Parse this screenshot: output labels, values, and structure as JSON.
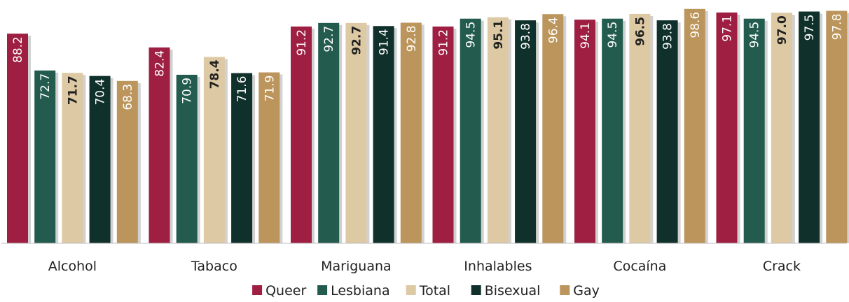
{
  "chart_data": {
    "type": "bar",
    "categories": [
      "Alcohol",
      "Tabaco",
      "Mariguana",
      "Inhalables",
      "Cocaína",
      "Crack"
    ],
    "series": [
      {
        "name": "Queer",
        "color": "#9e1f42",
        "label_color": "#ffffff",
        "label_bold": false,
        "values": [
          88.2,
          82.4,
          91.2,
          91.2,
          94.1,
          97.1
        ]
      },
      {
        "name": "Lesbiana",
        "color": "#235b4e",
        "label_color": "#ffffff",
        "label_bold": false,
        "values": [
          72.7,
          70.9,
          92.7,
          94.5,
          94.5,
          94.5
        ]
      },
      {
        "name": "Total",
        "color": "#ddc9a3",
        "label_color": "#222222",
        "label_bold": true,
        "values": [
          71.7,
          78.4,
          92.7,
          95.1,
          96.5,
          97.0
        ]
      },
      {
        "name": "Bisexual",
        "color": "#10312b",
        "label_color": "#ffffff",
        "label_bold": false,
        "values": [
          70.4,
          71.6,
          91.4,
          93.8,
          93.8,
          97.5
        ]
      },
      {
        "name": "Gay",
        "color": "#bc955c",
        "label_color": "#ffffff",
        "label_bold": false,
        "values": [
          68.3,
          71.9,
          92.8,
          96.4,
          98.6,
          97.8
        ]
      }
    ],
    "value_labels": [
      [
        "88.2",
        "72.7",
        "71.7",
        "70.4",
        "68.3"
      ],
      [
        "82.4",
        "70.9",
        "78.4",
        "71.6",
        "71.9"
      ],
      [
        "91.2",
        "92.7",
        "92.7",
        "91.4",
        "92.8"
      ],
      [
        "91.2",
        "94.5",
        "95.1",
        "93.8",
        "96.4"
      ],
      [
        "94.1",
        "94.5",
        "96.5",
        "93.8",
        "98.6"
      ],
      [
        "97.1",
        "94.5",
        "97.0",
        "97.5",
        "97.8"
      ]
    ],
    "legend_position": "bottom",
    "value_label_orientation": "vertical",
    "grid": false,
    "title": "",
    "xlabel": "",
    "ylabel": ""
  }
}
